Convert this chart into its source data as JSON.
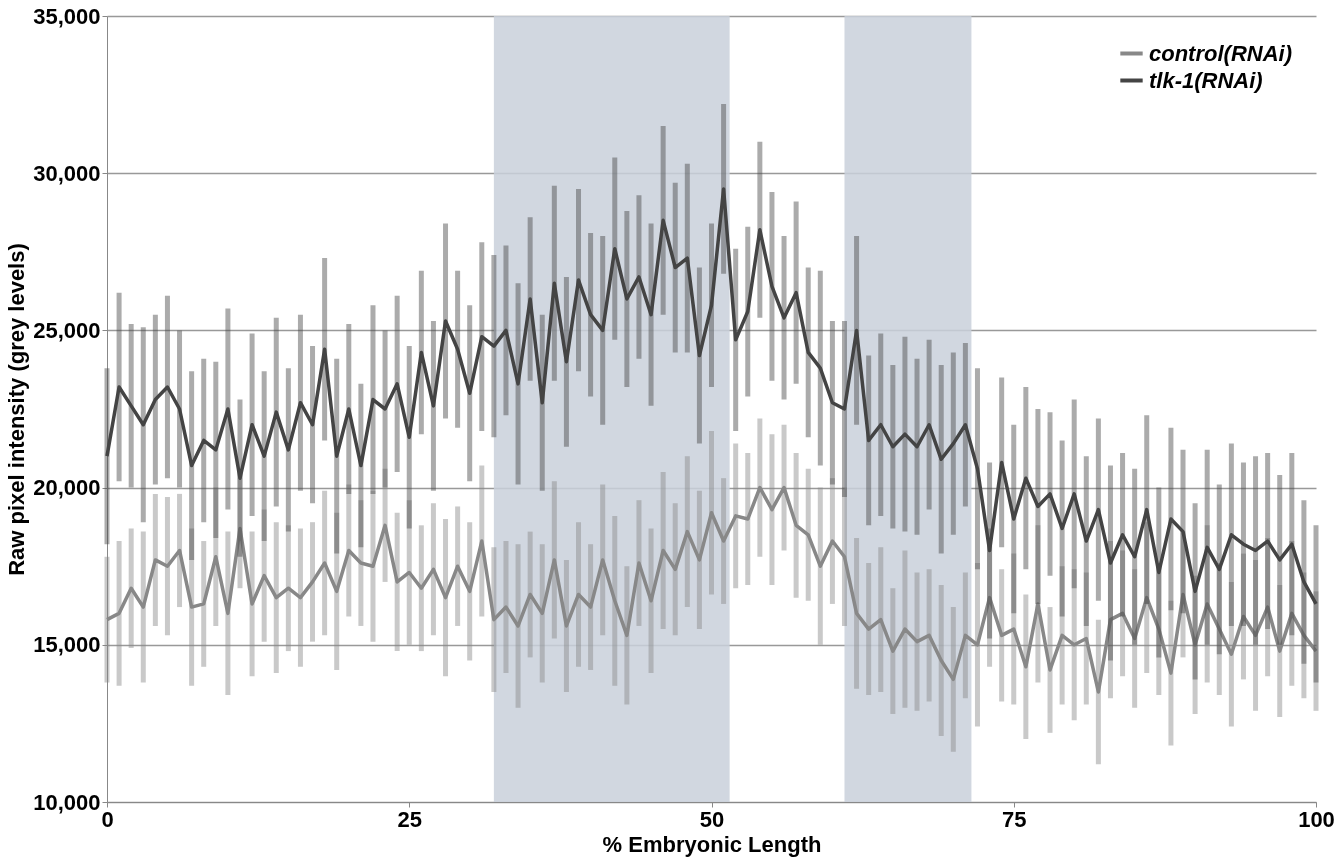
{
  "chart_data": {
    "type": "line",
    "xlabel": "% Embryonic Length",
    "ylabel": "Raw pixel intensity (grey levels)",
    "x": [
      0,
      1,
      2,
      3,
      4,
      5,
      6,
      7,
      8,
      9,
      10,
      11,
      12,
      13,
      14,
      15,
      16,
      17,
      18,
      19,
      20,
      21,
      22,
      23,
      24,
      25,
      26,
      27,
      28,
      29,
      30,
      31,
      32,
      33,
      34,
      35,
      36,
      37,
      38,
      39,
      40,
      41,
      42,
      43,
      44,
      45,
      46,
      47,
      48,
      49,
      50,
      51,
      52,
      53,
      54,
      55,
      56,
      57,
      58,
      59,
      60,
      61,
      62,
      63,
      64,
      65,
      66,
      67,
      68,
      69,
      70,
      71,
      72,
      73,
      74,
      75,
      76,
      77,
      78,
      79,
      80,
      81,
      82,
      83,
      84,
      85,
      86,
      87,
      88,
      89,
      90,
      91,
      92,
      93,
      94,
      95,
      96,
      97,
      98,
      99,
      100
    ],
    "series": [
      {
        "name": "control(RNAi)",
        "color": "#888888",
        "values": [
          15800,
          16000,
          16800,
          16200,
          17700,
          17500,
          18000,
          16200,
          16300,
          17800,
          16000,
          18700,
          16300,
          17200,
          16500,
          16800,
          16500,
          17000,
          17600,
          16700,
          18000,
          17600,
          17500,
          18800,
          17000,
          17300,
          16800,
          17400,
          16500,
          17500,
          16700,
          18300,
          15800,
          16200,
          15600,
          16600,
          16000,
          17700,
          15600,
          16600,
          16200,
          17700,
          16400,
          15300,
          17600,
          16400,
          18000,
          17400,
          18600,
          17700,
          19200,
          18300,
          19100,
          19000,
          20000,
          19300,
          20000,
          18800,
          18500,
          17500,
          18300,
          17800,
          16000,
          15500,
          15800,
          14800,
          15500,
          15100,
          15300,
          14500,
          13900,
          15300,
          15000,
          16500,
          15300,
          15500,
          14300,
          16300,
          14200,
          15300,
          15000,
          15200,
          13500,
          15800,
          16000,
          15200,
          16500,
          15500,
          14100,
          16600,
          15000,
          16300,
          15500,
          14700,
          15900,
          15300,
          16200,
          14800,
          16000,
          15300,
          14800
        ],
        "errors": [
          2000,
          2300,
          1900,
          2400,
          2100,
          2200,
          1800,
          2500,
          2000,
          2200,
          2600,
          1900,
          2300,
          2100,
          2400,
          2000,
          2200,
          1900,
          2300,
          2500,
          2100,
          2000,
          2400,
          1800,
          2200,
          2300,
          2000,
          2100,
          2500,
          1900,
          2200,
          2400,
          2300,
          2100,
          2600,
          2000,
          2200,
          2500,
          2100,
          2300,
          2000,
          2400,
          2700,
          2200,
          2000,
          2300,
          2500,
          2100,
          2400,
          2200,
          2600,
          2000,
          2300,
          2100,
          2200,
          2400,
          2000,
          2300,
          2100,
          2500,
          2000,
          2200,
          2400,
          2100,
          2300,
          2000,
          2500,
          2200,
          2100,
          2400,
          2300,
          2000,
          2600,
          2200,
          2100,
          2400,
          2300,
          2500,
          2000,
          2200,
          2400,
          2100,
          2300,
          2500,
          2000,
          2200,
          2400,
          2100,
          2300,
          2000,
          2200,
          2500,
          2100,
          2300,
          2000,
          2400,
          2200,
          2100,
          2300,
          2000,
          1900
        ]
      },
      {
        "name": "tlk-1(RNAi)",
        "color": "#444444",
        "values": [
          21000,
          23200,
          22600,
          22000,
          22800,
          23200,
          22500,
          20700,
          21500,
          21200,
          22500,
          20300,
          22000,
          21000,
          22400,
          21200,
          22700,
          22000,
          24400,
          21000,
          22500,
          20700,
          22800,
          22500,
          23300,
          21600,
          24300,
          22600,
          25300,
          24400,
          23000,
          24800,
          24500,
          25000,
          23300,
          26000,
          22700,
          26500,
          24000,
          26600,
          25500,
          25000,
          27600,
          26000,
          26700,
          25500,
          28500,
          27000,
          27300,
          24200,
          25800,
          29500,
          24700,
          25600,
          28200,
          26400,
          25400,
          26200,
          24300,
          23800,
          22700,
          22500,
          25000,
          21500,
          22000,
          21300,
          21700,
          21300,
          22000,
          20900,
          21400,
          22000,
          20600,
          18000,
          20800,
          19000,
          20300,
          19400,
          19800,
          18700,
          19800,
          18300,
          19300,
          17600,
          18500,
          17800,
          19300,
          17300,
          19000,
          18600,
          16700,
          18100,
          17400,
          18500,
          18200,
          18000,
          18300,
          17700,
          18200,
          17000,
          16300
        ],
        "errors": [
          2800,
          3000,
          2600,
          3100,
          2700,
          2900,
          2500,
          3000,
          2600,
          2800,
          3200,
          2500,
          2900,
          2700,
          3000,
          2600,
          2800,
          2500,
          2900,
          3100,
          2700,
          2600,
          3000,
          2500,
          2800,
          2900,
          2600,
          2700,
          3100,
          2500,
          2800,
          3000,
          2900,
          2700,
          3200,
          2600,
          2800,
          3100,
          2700,
          2900,
          2600,
          3000,
          2900,
          2800,
          2600,
          2900,
          3000,
          2700,
          3000,
          2800,
          2600,
          2700,
          2900,
          2700,
          2800,
          3000,
          2600,
          2900,
          2700,
          3100,
          2600,
          2800,
          3000,
          2700,
          2900,
          2600,
          3100,
          2800,
          2700,
          3000,
          2900,
          2600,
          3200,
          2800,
          2700,
          3000,
          2900,
          3100,
          2600,
          2800,
          3000,
          2700,
          2900,
          3100,
          2600,
          2800,
          3000,
          2700,
          2900,
          2600,
          2800,
          3100,
          2700,
          2900,
          2600,
          3000,
          2800,
          2700,
          2900,
          2600,
          2500
        ]
      }
    ],
    "xlim": [
      0,
      100
    ],
    "xticks": [
      0,
      25,
      50,
      75,
      100
    ],
    "ylim": [
      10000,
      35000
    ],
    "yticks": [
      {
        "value": 10000,
        "label": "10,000"
      },
      {
        "value": 15000,
        "label": "15,000"
      },
      {
        "value": 20000,
        "label": "20,000"
      },
      {
        "value": 25000,
        "label": "25,000"
      },
      {
        "value": 30000,
        "label": "30,000"
      },
      {
        "value": 35000,
        "label": "35,000"
      }
    ],
    "bands": [
      {
        "axis": "x",
        "from": 32,
        "to": 51.5,
        "color": "#c9d0db"
      },
      {
        "axis": "x",
        "from": 61,
        "to": 71.5,
        "color": "#c9d0db"
      }
    ],
    "grid": "y",
    "legend": "top right",
    "marker": "none",
    "line_style": "solid"
  }
}
